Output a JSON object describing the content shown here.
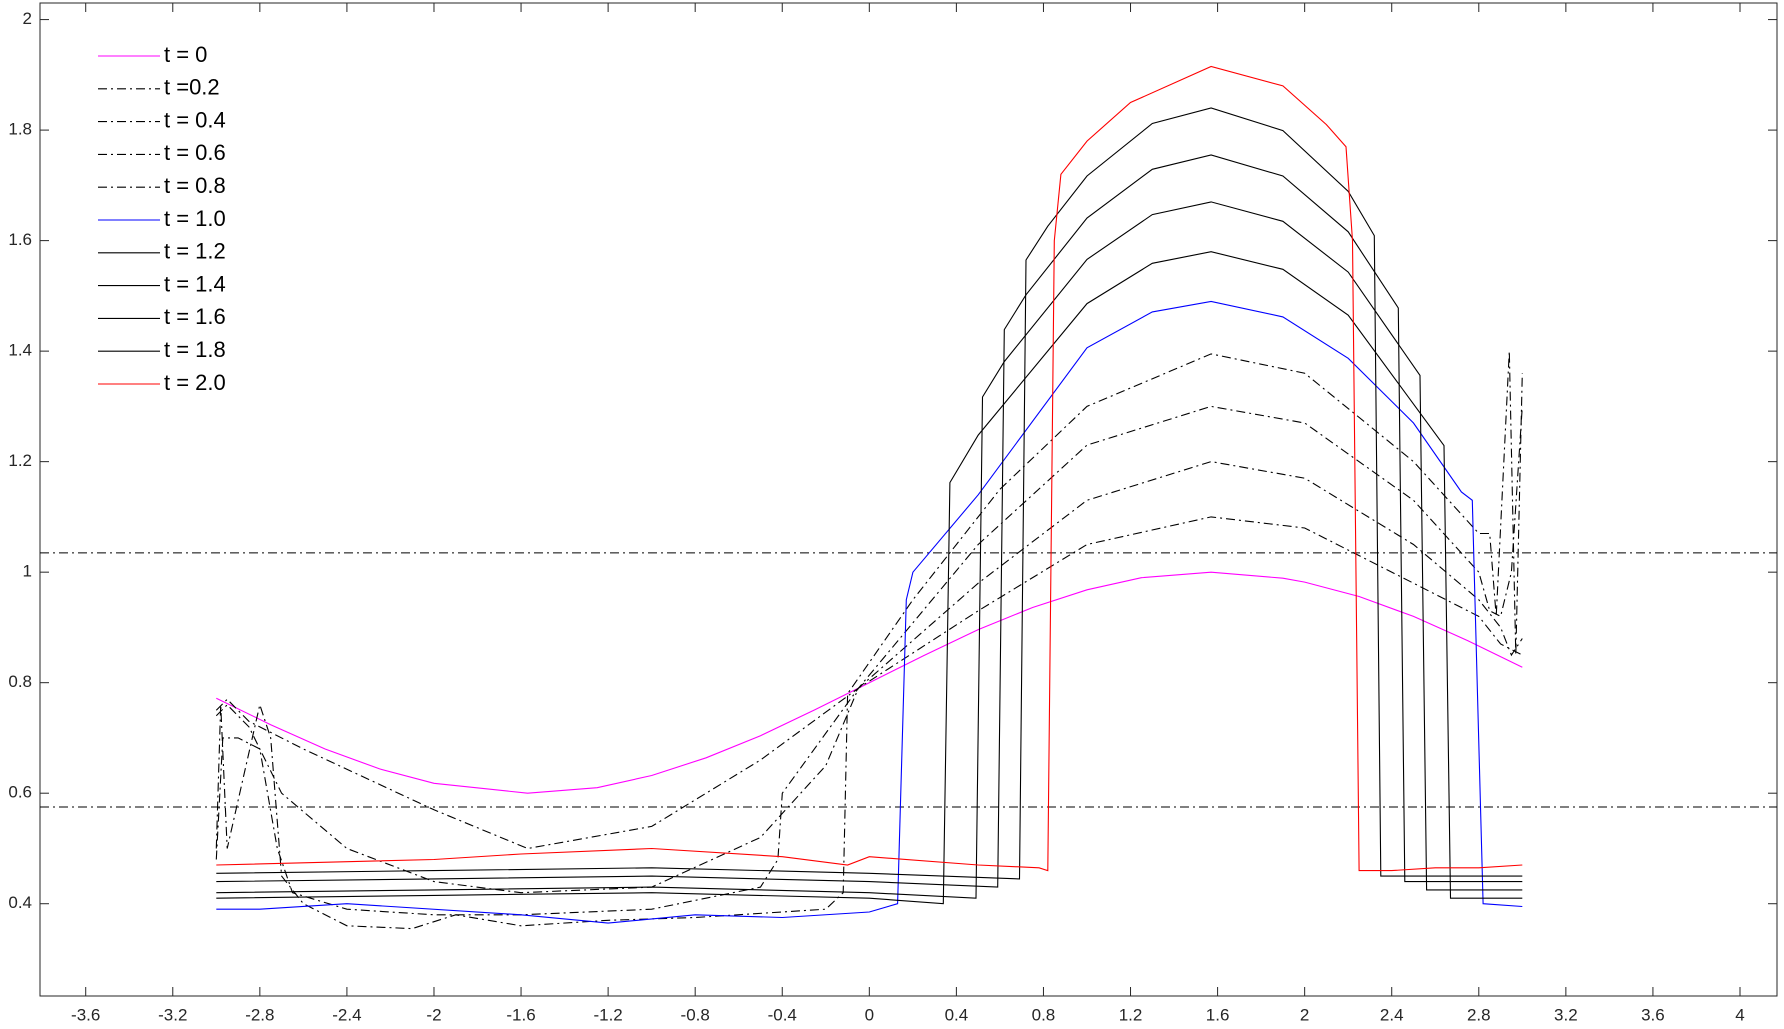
{
  "chart_data": {
    "type": "line",
    "xlim": [
      -3.81,
      4.17
    ],
    "ylim": [
      0.233,
      2.03
    ],
    "xticks": [
      -3.6,
      -3.2,
      -2.8,
      -2.4,
      -2,
      -1.6,
      -1.2,
      -0.8,
      -0.4,
      0,
      0.4,
      0.8,
      1.2,
      1.6,
      2,
      2.4,
      2.8,
      3.2,
      3.6,
      4
    ],
    "yticks": [
      0.4,
      0.6,
      0.8,
      1,
      1.2,
      1.4,
      1.6,
      1.8,
      2
    ],
    "legend": "upper-left",
    "reference_lines": [
      1.035,
      0.575
    ],
    "reference_style": {
      "color": "#000000",
      "dash": "dashdot"
    },
    "series": [
      {
        "name": "t = 0",
        "color": "#ff00ff",
        "dash": "solid",
        "x": [
          -3,
          -2.75,
          -2.5,
          -2.25,
          -2,
          -1.57,
          -1.25,
          -1,
          -0.75,
          -0.5,
          -0.25,
          0,
          0.25,
          0.5,
          0.75,
          1,
          1.25,
          1.57,
          1.9,
          2,
          2.25,
          2.5,
          2.75,
          3
        ],
        "values": [
          0.772,
          0.724,
          0.68,
          0.644,
          0.618,
          0.6,
          0.61,
          0.632,
          0.664,
          0.704,
          0.751,
          0.8,
          0.849,
          0.896,
          0.936,
          0.968,
          0.99,
          1.0,
          0.989,
          0.982,
          0.956,
          0.92,
          0.876,
          0.828
        ]
      },
      {
        "name": "t =0.2",
        "color": "#000000",
        "dash": "dashdot",
        "x": [
          -3,
          -2.95,
          -2.85,
          -2.6,
          -2,
          -1.57,
          -1,
          -0.5,
          -0.05,
          0.5,
          1,
          1.57,
          2,
          2.5,
          2.8,
          2.9,
          2.95,
          3
        ],
        "values": [
          0.75,
          0.77,
          0.73,
          0.68,
          0.57,
          0.5,
          0.54,
          0.66,
          0.79,
          0.93,
          1.05,
          1.1,
          1.08,
          0.98,
          0.92,
          0.87,
          0.86,
          0.85
        ]
      },
      {
        "name": "t = 0.4",
        "color": "#000000",
        "dash": "dashdot",
        "x": [
          -3,
          -2.95,
          -2.85,
          -2.7,
          -2.4,
          -2,
          -1.6,
          -1,
          -0.5,
          -0.2,
          -0.05,
          0.5,
          1,
          1.57,
          2,
          2.5,
          2.8,
          2.9,
          2.95,
          3
        ],
        "values": [
          0.74,
          0.76,
          0.72,
          0.6,
          0.5,
          0.44,
          0.42,
          0.43,
          0.52,
          0.65,
          0.79,
          0.98,
          1.13,
          1.2,
          1.17,
          1.05,
          0.95,
          0.9,
          0.85,
          0.88
        ]
      },
      {
        "name": "t = 0.6",
        "color": "#000000",
        "dash": "dashdot",
        "x": [
          -3,
          -2.97,
          -2.9,
          -2.8,
          -2.72,
          -2.65,
          -2.4,
          -2,
          -1.6,
          -1,
          -0.5,
          -0.42,
          -0.4,
          -0.05,
          0.5,
          1,
          1.57,
          2,
          2.5,
          2.8,
          2.85,
          2.9,
          2.95,
          3
        ],
        "values": [
          0.48,
          0.7,
          0.7,
          0.68,
          0.5,
          0.42,
          0.39,
          0.38,
          0.38,
          0.39,
          0.43,
          0.48,
          0.6,
          0.79,
          1.05,
          1.23,
          1.3,
          1.27,
          1.13,
          1.0,
          0.93,
          0.92,
          1.0,
          1.3
        ]
      },
      {
        "name": "t = 0.8",
        "color": "#000000",
        "dash": "dashdot",
        "x": [
          -3,
          -2.98,
          -2.95,
          -2.8,
          -2.75,
          -2.7,
          -2.6,
          -2.4,
          -2.1,
          -1.9,
          -1.6,
          -1.2,
          -0.8,
          -0.2,
          -0.12,
          -0.1,
          0.2,
          0.6,
          1,
          1.57,
          2,
          2.5,
          2.8,
          2.85,
          2.88,
          2.94,
          2.97,
          3
        ],
        "values": [
          0.5,
          0.76,
          0.5,
          0.76,
          0.7,
          0.45,
          0.4,
          0.36,
          0.355,
          0.38,
          0.36,
          0.37,
          0.375,
          0.39,
          0.42,
          0.78,
          0.95,
          1.15,
          1.3,
          1.395,
          1.36,
          1.2,
          1.07,
          1.07,
          0.92,
          1.4,
          0.85,
          1.36
        ]
      },
      {
        "name": "t = 1.0",
        "color": "#0000ff",
        "dash": "solid",
        "x": [
          -3,
          -2.8,
          -2.4,
          -1.6,
          -1.2,
          -0.8,
          -0.4,
          0,
          0.13,
          0.17,
          0.2,
          0.5,
          1,
          1.3,
          1.57,
          1.9,
          2.2,
          2.5,
          2.72,
          2.77,
          2.82,
          3
        ],
        "values": [
          0.39,
          0.39,
          0.4,
          0.38,
          0.365,
          0.38,
          0.375,
          0.385,
          0.4,
          0.95,
          1.0,
          1.14,
          1.406,
          1.471,
          1.49,
          1.462,
          1.387,
          1.27,
          1.145,
          1.13,
          0.4,
          0.395
        ]
      },
      {
        "name": "t = 1.2",
        "color": "#000000",
        "dash": "solid",
        "x": [
          -3,
          -2,
          -1,
          0,
          0.34,
          0.37,
          0.5,
          1,
          1.3,
          1.57,
          1.9,
          2.2,
          2.64,
          2.67,
          3
        ],
        "values": [
          0.41,
          0.415,
          0.42,
          0.41,
          0.4,
          1.162,
          1.248,
          1.486,
          1.559,
          1.58,
          1.548,
          1.465,
          1.229,
          0.41,
          0.41
        ]
      },
      {
        "name": "t = 1.4",
        "color": "#000000",
        "dash": "solid",
        "x": [
          -3,
          -2,
          -1,
          0,
          0.49,
          0.52,
          0.62,
          1,
          1.3,
          1.57,
          1.9,
          2.2,
          2.53,
          2.56,
          3
        ],
        "values": [
          0.42,
          0.425,
          0.43,
          0.42,
          0.41,
          1.317,
          1.381,
          1.566,
          1.647,
          1.67,
          1.635,
          1.543,
          1.356,
          0.425,
          0.425
        ]
      },
      {
        "name": "t = 1.6",
        "color": "#000000",
        "dash": "solid",
        "x": [
          -3,
          -2,
          -1,
          0,
          0.59,
          0.62,
          0.72,
          1,
          1.3,
          1.57,
          1.9,
          2.2,
          2.43,
          2.46,
          3
        ],
        "values": [
          0.44,
          0.445,
          0.45,
          0.44,
          0.43,
          1.439,
          1.502,
          1.641,
          1.729,
          1.755,
          1.717,
          1.616,
          1.478,
          0.44,
          0.44
        ]
      },
      {
        "name": "t = 1.8",
        "color": "#000000",
        "dash": "solid",
        "x": [
          -3,
          -2,
          -1,
          0,
          0.69,
          0.72,
          0.82,
          1,
          1.3,
          1.57,
          1.9,
          2.2,
          2.32,
          2.35,
          3
        ],
        "values": [
          0.455,
          0.46,
          0.465,
          0.455,
          0.445,
          1.565,
          1.626,
          1.717,
          1.812,
          1.84,
          1.799,
          1.689,
          1.609,
          0.45,
          0.45
        ]
      },
      {
        "name": "t = 2.0",
        "color": "#ff0000",
        "dash": "solid",
        "x": [
          -3,
          -2,
          -1.6,
          -1,
          -0.4,
          -0.1,
          0,
          0.5,
          0.78,
          0.82,
          0.85,
          0.88,
          1,
          1.2,
          1.57,
          1.9,
          2.1,
          2.19,
          2.22,
          2.25,
          2.4,
          2.6,
          2.8,
          3
        ],
        "values": [
          0.47,
          0.48,
          0.49,
          0.5,
          0.485,
          0.47,
          0.485,
          0.47,
          0.465,
          0.46,
          1.6,
          1.72,
          1.78,
          1.85,
          1.915,
          1.88,
          1.81,
          1.77,
          1.6,
          0.46,
          0.46,
          0.465,
          0.465,
          0.47
        ]
      }
    ]
  }
}
